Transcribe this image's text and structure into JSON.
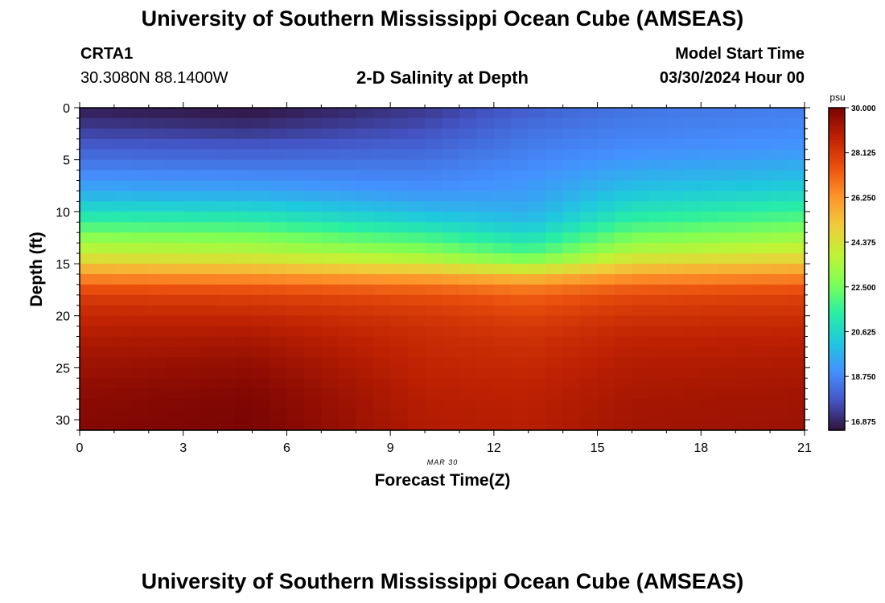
{
  "page": {
    "title": "University of Southern Mississippi Ocean Cube (AMSEAS)",
    "footer_title": "University of Southern Mississippi Ocean Cube (AMSEAS)",
    "station_id": "CRTA1",
    "station_coords": "30.3080N  88.1400W",
    "plot_subtitle": "2-D Salinity at Depth",
    "model_start_label": "Model Start Time",
    "model_start_value": "03/30/2024 Hour 00",
    "date_label": "MAR 30"
  },
  "chart_data": {
    "type": "heatmap",
    "title": "2-D Salinity at Depth",
    "xlabel": "Forecast Time(Z)",
    "ylabel": "Depth (ft)",
    "x_ticks": [
      "0",
      "3",
      "6",
      "9",
      "12",
      "15",
      "18",
      "21"
    ],
    "y_ticks": [
      "0",
      "5",
      "10",
      "15",
      "20",
      "25",
      "30"
    ],
    "xlim": [
      0,
      21
    ],
    "ylim": [
      0,
      31
    ],
    "y_inverted": true,
    "grid": false,
    "colorbar": {
      "unit": "psu",
      "ticks": [
        "30.000",
        "28.125",
        "26.250",
        "24.375",
        "22.500",
        "20.625",
        "18.750",
        "16.875"
      ],
      "range": [
        16.5,
        30.0
      ],
      "colors": [
        "#30123b",
        "#4454c4",
        "#4490fe",
        "#1fc8de",
        "#29efa2",
        "#7dff56",
        "#c1f334",
        "#f1ca3a",
        "#fe922a",
        "#ea4f0d",
        "#be2102",
        "#7a0403"
      ]
    },
    "grid_cells": {
      "time_steps": 42,
      "depth_levels": 31
    },
    "profiles": {
      "depth_ft": [
        0,
        2,
        4,
        6,
        8,
        10,
        11,
        12,
        13,
        14,
        15,
        16,
        17,
        18,
        20,
        22,
        25,
        28,
        31
      ],
      "hour_0": [
        16.7,
        17.3,
        18.0,
        18.7,
        19.5,
        20.8,
        21.6,
        22.5,
        23.3,
        24.0,
        25.0,
        26.2,
        27.2,
        28.0,
        28.6,
        29.0,
        29.4,
        29.7,
        29.8
      ],
      "hour_5": [
        16.5,
        17.1,
        17.9,
        18.6,
        19.4,
        20.7,
        21.5,
        22.3,
        23.1,
        23.8,
        24.8,
        26.0,
        27.1,
        27.9,
        28.6,
        29.1,
        29.6,
        29.9,
        30.0
      ],
      "hour_10": [
        17.2,
        17.6,
        18.1,
        18.6,
        19.0,
        19.9,
        20.6,
        21.4,
        22.2,
        23.0,
        24.2,
        25.6,
        26.8,
        27.6,
        28.2,
        28.5,
        28.7,
        28.9,
        29.0
      ],
      "hour_13": [
        17.9,
        18.3,
        18.6,
        18.9,
        19.2,
        19.6,
        20.0,
        20.6,
        21.2,
        22.0,
        23.2,
        25.0,
        26.4,
        27.2,
        27.9,
        28.3,
        28.6,
        28.8,
        28.9
      ],
      "hour_16": [
        18.4,
        18.6,
        18.9,
        19.4,
        20.1,
        21.0,
        21.6,
        22.3,
        23.0,
        23.8,
        24.8,
        26.0,
        27.0,
        27.7,
        28.3,
        28.7,
        29.0,
        29.2,
        29.3
      ],
      "hour_21": [
        18.6,
        18.8,
        19.1,
        19.7,
        20.5,
        21.6,
        22.2,
        22.9,
        23.6,
        24.3,
        25.2,
        26.3,
        27.2,
        27.9,
        28.4,
        28.8,
        29.1,
        29.3,
        29.4
      ]
    }
  }
}
